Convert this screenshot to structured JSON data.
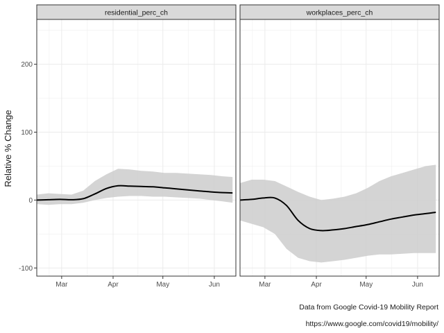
{
  "chart_data": {
    "type": "line",
    "ylabel": "Relative % Change",
    "xlabel": "",
    "ylim": [
      -112,
      266
    ],
    "xlim": [
      "2020-02-15",
      "2020-06-14"
    ],
    "y_ticks": [
      -100,
      0,
      100,
      200
    ],
    "x_ticks": [
      {
        "date": "2020-03-01",
        "label": "Mar"
      },
      {
        "date": "2020-04-01",
        "label": "Apr"
      },
      {
        "date": "2020-05-01",
        "label": "May"
      },
      {
        "date": "2020-06-01",
        "label": "Jun"
      }
    ],
    "grid": true,
    "colors": {
      "trend": "#000000",
      "band": "#cccccc",
      "strip": "#d9d9d9",
      "grid": "#ebebeb",
      "panel_border": "#333333"
    },
    "panels": [
      {
        "strip_label": "residential_perc_ch",
        "trend": {
          "x": [
            "2020-02-15",
            "2020-02-22",
            "2020-02-29",
            "2020-03-07",
            "2020-03-14",
            "2020-03-21",
            "2020-03-28",
            "2020-04-04",
            "2020-04-11",
            "2020-04-18",
            "2020-04-25",
            "2020-05-02",
            "2020-05-09",
            "2020-05-16",
            "2020-05-23",
            "2020-05-30",
            "2020-06-06",
            "2020-06-12"
          ],
          "y": [
            0,
            0.5,
            1,
            0.5,
            2,
            9,
            17,
            21,
            20.5,
            20,
            19.5,
            18,
            16.5,
            15,
            13.5,
            12,
            11,
            10.5
          ]
        },
        "band": {
          "x": [
            "2020-02-15",
            "2020-02-22",
            "2020-02-29",
            "2020-03-07",
            "2020-03-14",
            "2020-03-21",
            "2020-03-28",
            "2020-04-04",
            "2020-04-11",
            "2020-04-18",
            "2020-04-25",
            "2020-05-02",
            "2020-05-09",
            "2020-05-16",
            "2020-05-23",
            "2020-05-30",
            "2020-06-06",
            "2020-06-12"
          ],
          "upper": [
            8,
            10,
            9,
            8,
            14,
            28,
            38,
            46,
            45,
            43,
            42,
            40,
            40,
            39,
            38,
            37,
            35,
            34
          ],
          "lower": [
            -6,
            -7,
            -6,
            -6,
            -4,
            0,
            3,
            5,
            6,
            6,
            5,
            5,
            4,
            3,
            2,
            0,
            -2,
            -4
          ]
        }
      },
      {
        "strip_label": "workplaces_perc_ch",
        "trend": {
          "x": [
            "2020-02-15",
            "2020-02-22",
            "2020-02-29",
            "2020-03-07",
            "2020-03-14",
            "2020-03-21",
            "2020-03-28",
            "2020-04-04",
            "2020-04-11",
            "2020-04-18",
            "2020-04-25",
            "2020-05-02",
            "2020-05-09",
            "2020-05-16",
            "2020-05-23",
            "2020-05-30",
            "2020-06-06",
            "2020-06-12"
          ],
          "y": [
            0,
            1,
            3,
            3,
            -8,
            -30,
            -42,
            -45,
            -44,
            -42,
            -39,
            -36,
            -32,
            -28,
            -25,
            -22,
            -20,
            -18
          ]
        },
        "band": {
          "x": [
            "2020-02-15",
            "2020-02-22",
            "2020-02-29",
            "2020-03-07",
            "2020-03-14",
            "2020-03-21",
            "2020-03-28",
            "2020-04-04",
            "2020-04-11",
            "2020-04-18",
            "2020-04-25",
            "2020-05-02",
            "2020-05-09",
            "2020-05-16",
            "2020-05-23",
            "2020-05-30",
            "2020-06-06",
            "2020-06-12"
          ],
          "upper": [
            25,
            30,
            30,
            28,
            20,
            12,
            5,
            0,
            2,
            5,
            10,
            18,
            28,
            35,
            40,
            45,
            50,
            52
          ],
          "lower": [
            -30,
            -35,
            -40,
            -50,
            -72,
            -85,
            -90,
            -92,
            -90,
            -88,
            -85,
            -82,
            -80,
            -80,
            -79,
            -78,
            -78,
            -78
          ]
        }
      }
    ]
  },
  "captions": {
    "source": "Data from Google Covid-19 Mobility Report",
    "url": "https://www.google.com/covid19/mobility/"
  }
}
